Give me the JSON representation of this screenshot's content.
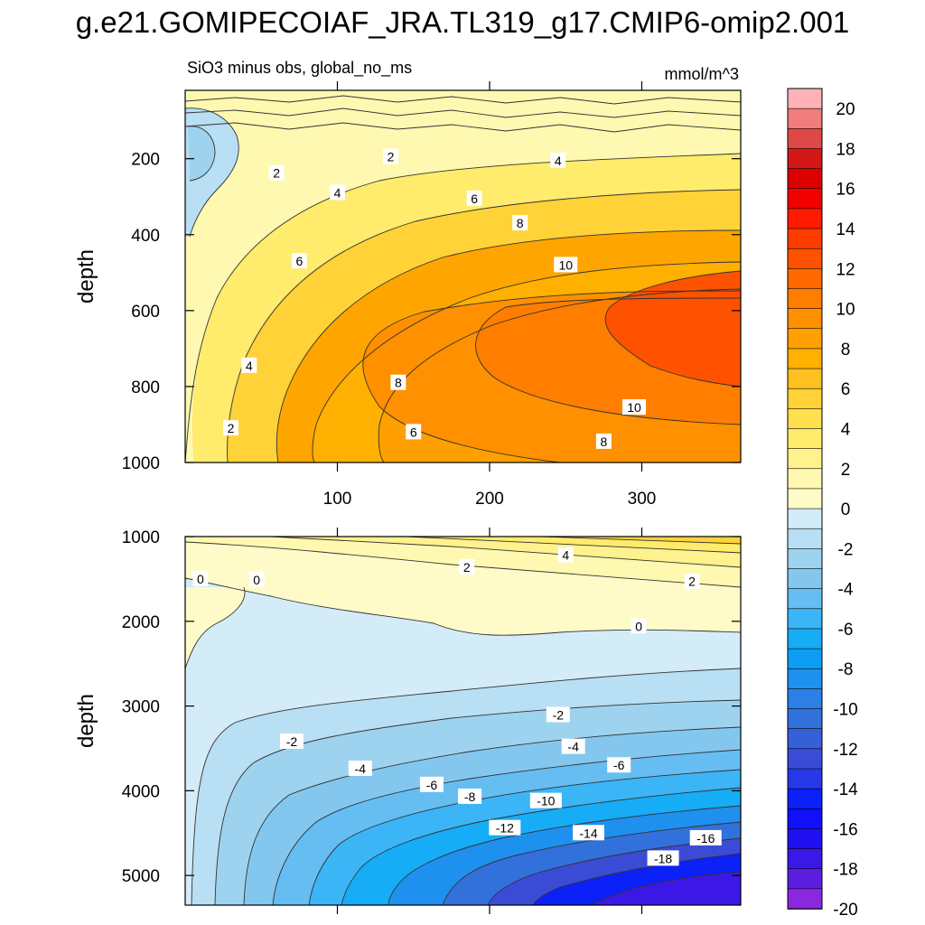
{
  "title": "g.e21.GOMIPECOIAF_JRA.TL319_g17.CMIP6-omip2.001",
  "chart_data": [
    {
      "type": "contour",
      "panel": "top",
      "subtitle_left": "SiO3 minus obs, global_no_ms",
      "subtitle_right": "mmol/m^3",
      "ylabel": "depth",
      "xlim": [
        0,
        365
      ],
      "ylim": [
        1000,
        20
      ],
      "xticks": [
        100,
        200,
        300
      ],
      "yticks": [
        200,
        400,
        600,
        800,
        1000
      ],
      "contour_labels": [
        {
          "text": "2",
          "x": 135,
          "y": 195
        },
        {
          "text": "2",
          "x": 60,
          "y": 238
        },
        {
          "text": "2",
          "x": 30,
          "y": 910
        },
        {
          "text": "4",
          "x": 245,
          "y": 205
        },
        {
          "text": "4",
          "x": 100,
          "y": 290
        },
        {
          "text": "4",
          "x": 42,
          "y": 745
        },
        {
          "text": "6",
          "x": 190,
          "y": 305
        },
        {
          "text": "6",
          "x": 75,
          "y": 470
        },
        {
          "text": "6",
          "x": 150,
          "y": 920
        },
        {
          "text": "8",
          "x": 220,
          "y": 370
        },
        {
          "text": "8",
          "x": 140,
          "y": 790
        },
        {
          "text": "8",
          "x": 275,
          "y": 945
        },
        {
          "text": "10",
          "x": 250,
          "y": 480
        },
        {
          "text": "10",
          "x": 295,
          "y": 855
        }
      ]
    },
    {
      "type": "contour",
      "panel": "bottom",
      "ylabel": "depth",
      "xlim": [
        0,
        365
      ],
      "ylim": [
        5350,
        1000
      ],
      "yticks": [
        1000,
        2000,
        3000,
        4000,
        5000
      ],
      "contour_labels": [
        {
          "text": "4",
          "x": 250,
          "y": 1220
        },
        {
          "text": "2",
          "x": 185,
          "y": 1360
        },
        {
          "text": "2",
          "x": 333,
          "y": 1530
        },
        {
          "text": "0",
          "x": 47,
          "y": 1510
        },
        {
          "text": "0",
          "x": 10,
          "y": 1500
        },
        {
          "text": "0",
          "x": 298,
          "y": 2060
        },
        {
          "text": "-2",
          "x": 245,
          "y": 3105
        },
        {
          "text": "-2",
          "x": 70,
          "y": 3420
        },
        {
          "text": "-4",
          "x": 255,
          "y": 3480
        },
        {
          "text": "-4",
          "x": 115,
          "y": 3740
        },
        {
          "text": "-6",
          "x": 285,
          "y": 3700
        },
        {
          "text": "-6",
          "x": 162,
          "y": 3930
        },
        {
          "text": "-8",
          "x": 187,
          "y": 4070
        },
        {
          "text": "-10",
          "x": 237,
          "y": 4120
        },
        {
          "text": "-12",
          "x": 210,
          "y": 4440
        },
        {
          "text": "-14",
          "x": 265,
          "y": 4500
        },
        {
          "text": "-16",
          "x": 342,
          "y": 4560
        },
        {
          "text": "-18",
          "x": 314,
          "y": 4800
        }
      ]
    }
  ],
  "colorbar": {
    "labels": [
      "20",
      "18",
      "16",
      "14",
      "12",
      "10",
      "8",
      "6",
      "4",
      "2",
      "0",
      "-2",
      "-4",
      "-6",
      "-8",
      "-10",
      "-12",
      "-14",
      "-16",
      "-18",
      "-20"
    ],
    "colors": [
      "#ffb3b8",
      "#f07c7c",
      "#e04848",
      "#d41818",
      "#dc0000",
      "#f20000",
      "#ff1a00",
      "#ff3c00",
      "#ff5200",
      "#ff6a00",
      "#ff7e00",
      "#ff9000",
      "#ffa000",
      "#ffb000",
      "#ffc020",
      "#ffd238",
      "#ffe150",
      "#ffeb6c",
      "#fff28e",
      "#fff8b0",
      "#fffbc8",
      "#d4ebf8",
      "#b8dff3",
      "#9ed3ef",
      "#84c7ee",
      "#66bdf2",
      "#3cb5f7",
      "#16acf6",
      "#0c9ef4",
      "#1e90ee",
      "#2a80e4",
      "#3270dc",
      "#3660d8",
      "#3a4cd6",
      "#2838e8",
      "#0c20f8",
      "#1010ff",
      "#2010f0",
      "#3c18e6",
      "#5c1ede",
      "#8a28e0"
    ]
  }
}
